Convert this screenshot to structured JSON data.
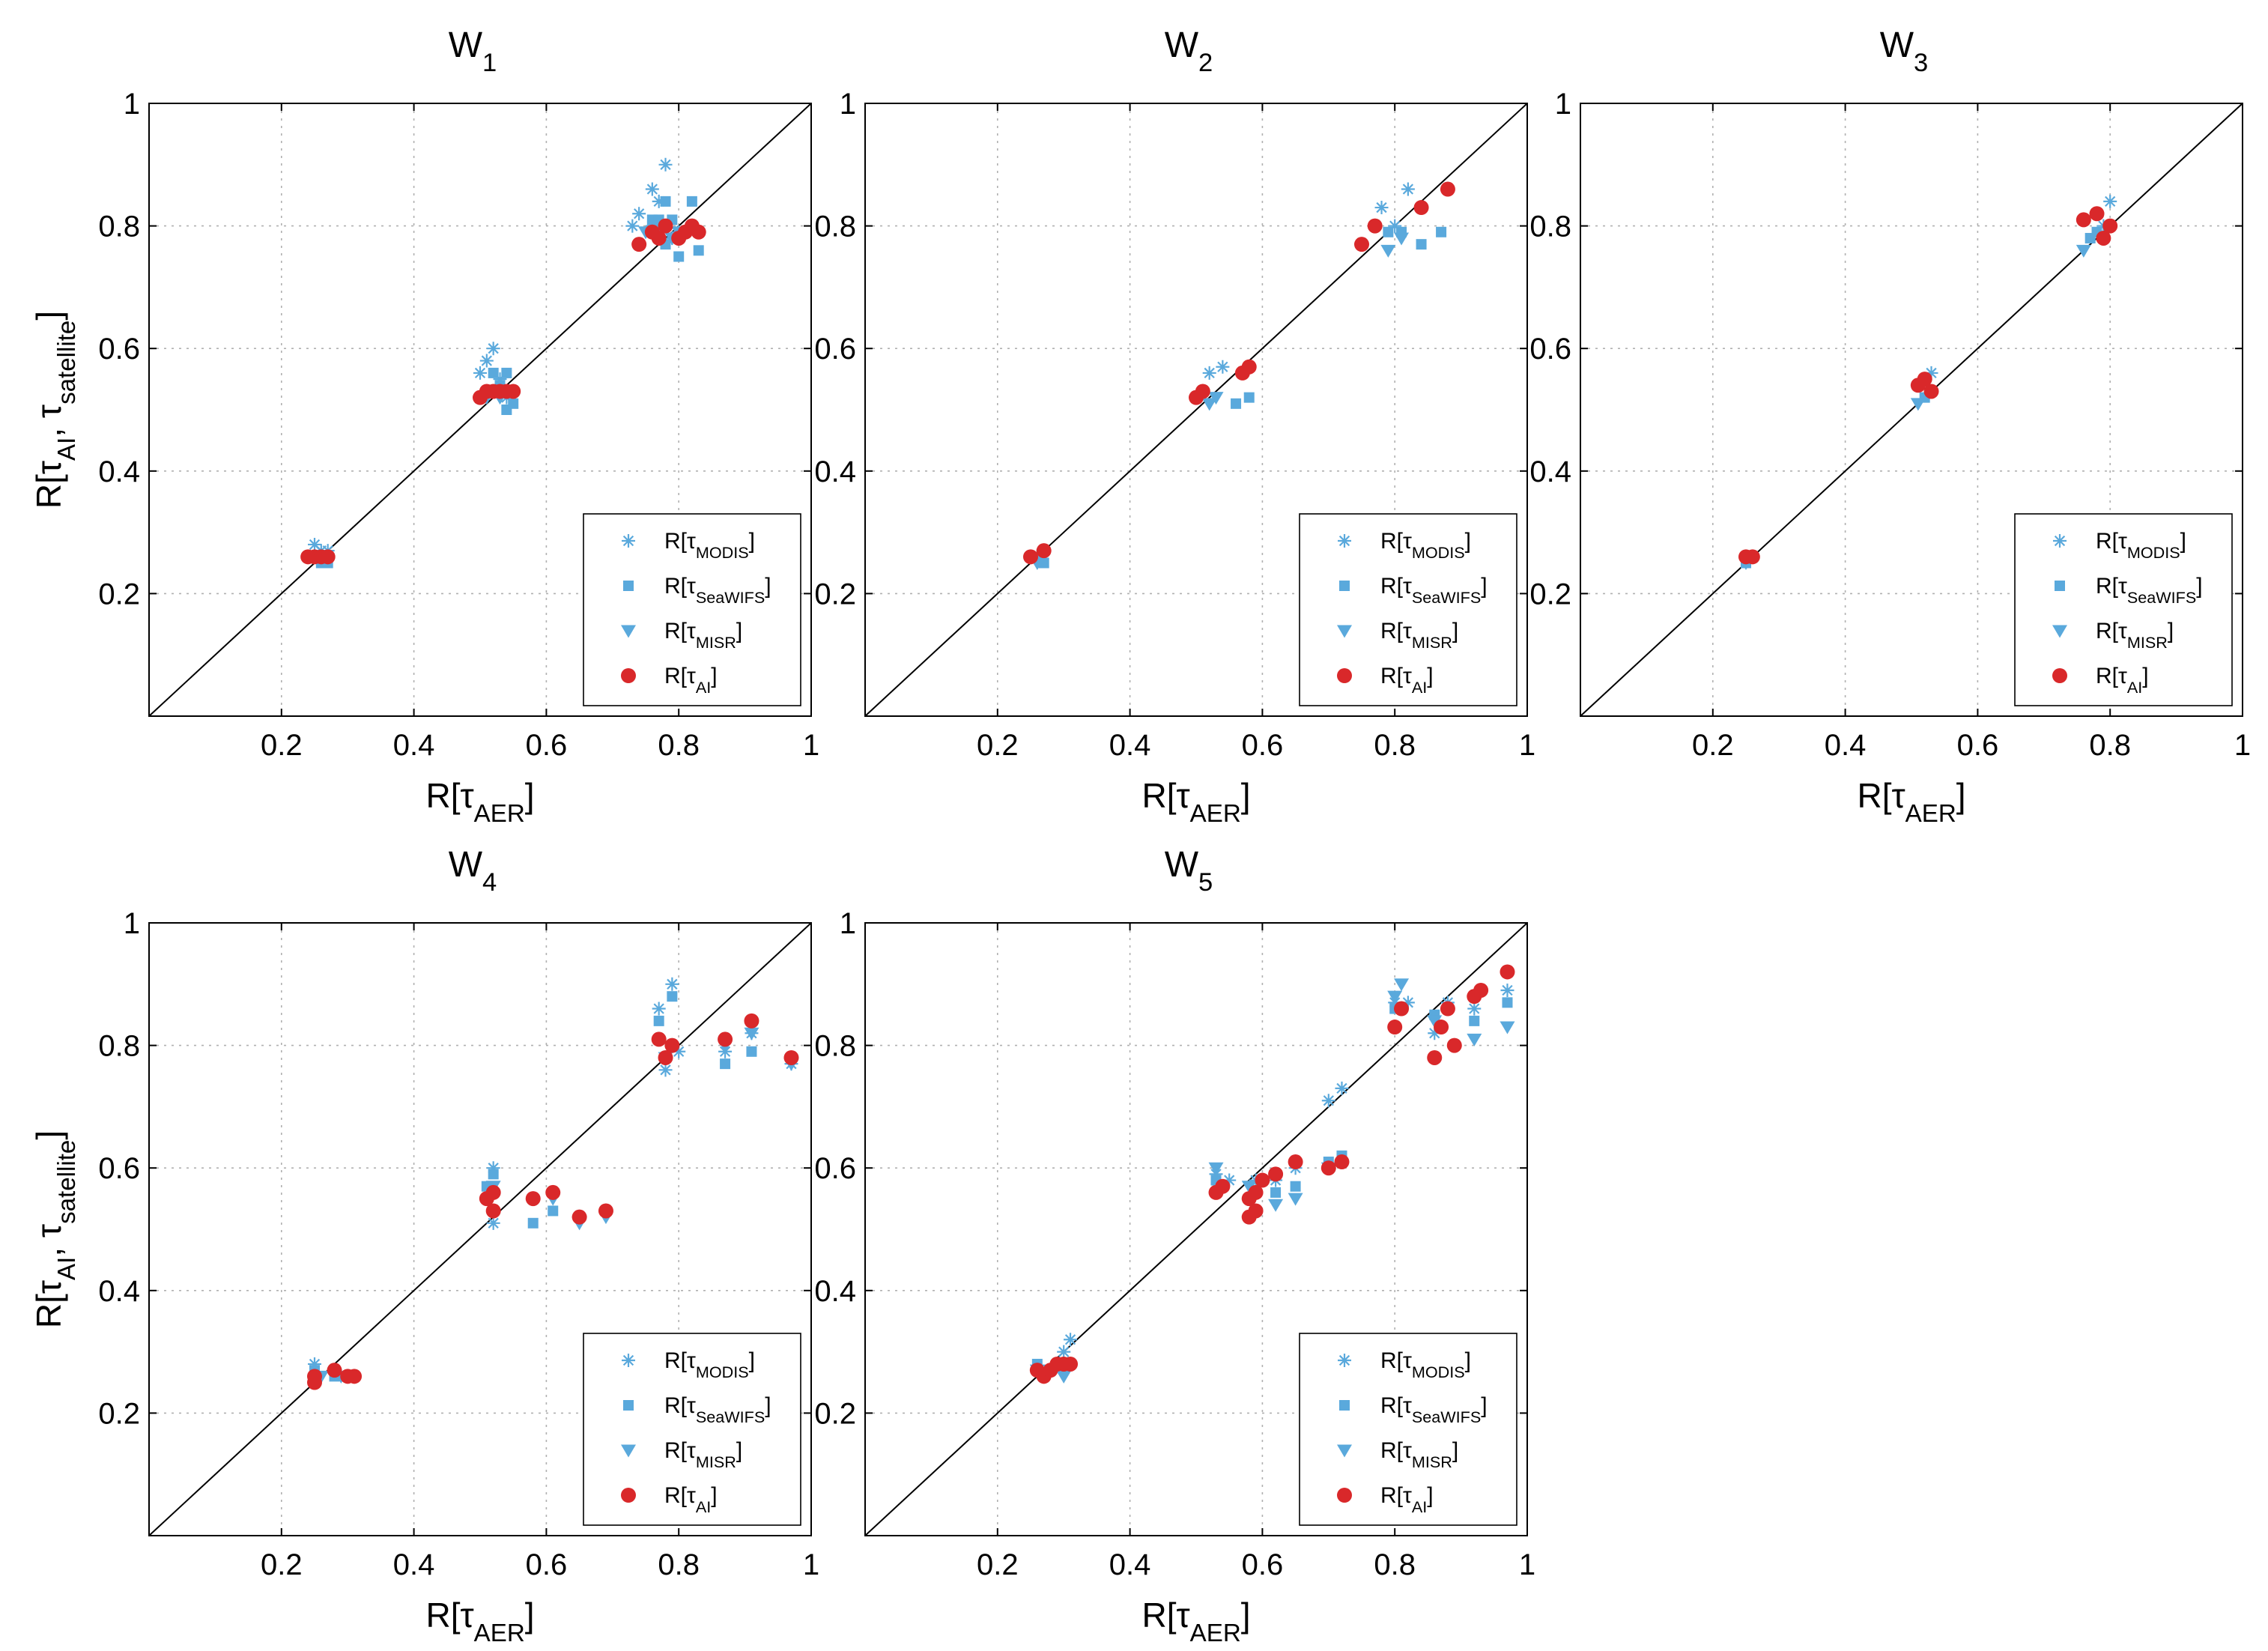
{
  "colors": {
    "satellite": "#5aa9dc",
    "ai": "#d9282a",
    "axis": "#000000",
    "grid": "#b0b0b0"
  },
  "chart_data": {
    "type": "scatter",
    "xlim": [
      0,
      1
    ],
    "ylim": [
      0,
      1
    ],
    "x_ticks": [
      "0.2",
      "0.4",
      "0.6",
      "0.8",
      "1"
    ],
    "y_ticks": [
      "0.2",
      "0.4",
      "0.6",
      "0.8",
      "1"
    ],
    "grid": true,
    "reference_line": "y = x",
    "legend_placement": "bottom-right",
    "xlabel": {
      "prefix": "R[τ",
      "sub": "AER",
      "suffix": "]"
    },
    "ylabel": {
      "prefix": "R[τ",
      "sub1": "AI",
      "mid": ", τ",
      "sub2": "satellite",
      "suffix": "]"
    },
    "legend": [
      {
        "key": "modis",
        "marker": "asterisk",
        "prefix": "R[τ",
        "sub": "MODIS",
        "suffix": "]"
      },
      {
        "key": "seawifs",
        "marker": "square",
        "prefix": "R[τ",
        "sub": "SeaWIFS",
        "suffix": "]"
      },
      {
        "key": "misr",
        "marker": "triangle",
        "prefix": "R[τ",
        "sub": "MISR",
        "suffix": "]"
      },
      {
        "key": "ai",
        "marker": "circle",
        "prefix": "R[τ",
        "sub": "AI",
        "suffix": "]"
      }
    ],
    "panels": [
      {
        "title": {
          "main": "W",
          "sub": "1"
        },
        "show_ylabel": true,
        "series": {
          "modis": [
            [
              0.25,
              0.28
            ],
            [
              0.26,
              0.27
            ],
            [
              0.24,
              0.26
            ],
            [
              0.27,
              0.27
            ],
            [
              0.51,
              0.58
            ],
            [
              0.52,
              0.6
            ],
            [
              0.5,
              0.56
            ],
            [
              0.53,
              0.55
            ],
            [
              0.54,
              0.52
            ],
            [
              0.76,
              0.86
            ],
            [
              0.78,
              0.9
            ],
            [
              0.74,
              0.82
            ],
            [
              0.77,
              0.84
            ],
            [
              0.8,
              0.79
            ],
            [
              0.73,
              0.8
            ],
            [
              0.76,
              0.8
            ],
            [
              0.79,
              0.78
            ]
          ],
          "seawifs": [
            [
              0.25,
              0.26
            ],
            [
              0.26,
              0.25
            ],
            [
              0.27,
              0.25
            ],
            [
              0.51,
              0.53
            ],
            [
              0.52,
              0.56
            ],
            [
              0.54,
              0.5
            ],
            [
              0.55,
              0.51
            ],
            [
              0.53,
              0.54
            ],
            [
              0.54,
              0.56
            ],
            [
              0.76,
              0.81
            ],
            [
              0.77,
              0.81
            ],
            [
              0.78,
              0.84
            ],
            [
              0.79,
              0.81
            ],
            [
              0.8,
              0.75
            ],
            [
              0.82,
              0.84
            ],
            [
              0.83,
              0.76
            ],
            [
              0.78,
              0.77
            ]
          ],
          "misr": [
            [
              0.25,
              0.26
            ],
            [
              0.26,
              0.26
            ],
            [
              0.51,
              0.52
            ],
            [
              0.52,
              0.53
            ],
            [
              0.53,
              0.52
            ],
            [
              0.75,
              0.79
            ],
            [
              0.77,
              0.8
            ],
            [
              0.79,
              0.78
            ],
            [
              0.8,
              0.79
            ]
          ],
          "ai": [
            [
              0.24,
              0.26
            ],
            [
              0.25,
              0.26
            ],
            [
              0.26,
              0.26
            ],
            [
              0.27,
              0.26
            ],
            [
              0.5,
              0.52
            ],
            [
              0.51,
              0.53
            ],
            [
              0.52,
              0.53
            ],
            [
              0.53,
              0.53
            ],
            [
              0.54,
              0.53
            ],
            [
              0.55,
              0.53
            ],
            [
              0.74,
              0.77
            ],
            [
              0.76,
              0.79
            ],
            [
              0.77,
              0.78
            ],
            [
              0.78,
              0.8
            ],
            [
              0.8,
              0.78
            ],
            [
              0.81,
              0.79
            ],
            [
              0.82,
              0.8
            ],
            [
              0.83,
              0.79
            ]
          ]
        }
      },
      {
        "title": {
          "main": "W",
          "sub": "2"
        },
        "show_ylabel": false,
        "series": {
          "modis": [
            [
              0.26,
              0.26
            ],
            [
              0.27,
              0.27
            ],
            [
              0.52,
              0.56
            ],
            [
              0.54,
              0.57
            ],
            [
              0.78,
              0.83
            ],
            [
              0.82,
              0.86
            ],
            [
              0.8,
              0.8
            ]
          ],
          "seawifs": [
            [
              0.27,
              0.25
            ],
            [
              0.56,
              0.51
            ],
            [
              0.58,
              0.52
            ],
            [
              0.79,
              0.79
            ],
            [
              0.81,
              0.79
            ],
            [
              0.84,
              0.77
            ],
            [
              0.87,
              0.79
            ]
          ],
          "misr": [
            [
              0.26,
              0.25
            ],
            [
              0.52,
              0.51
            ],
            [
              0.53,
              0.52
            ],
            [
              0.79,
              0.76
            ],
            [
              0.81,
              0.78
            ]
          ],
          "ai": [
            [
              0.25,
              0.26
            ],
            [
              0.27,
              0.27
            ],
            [
              0.5,
              0.52
            ],
            [
              0.51,
              0.53
            ],
            [
              0.57,
              0.56
            ],
            [
              0.58,
              0.57
            ],
            [
              0.75,
              0.77
            ],
            [
              0.77,
              0.8
            ],
            [
              0.84,
              0.83
            ],
            [
              0.88,
              0.86
            ]
          ]
        }
      },
      {
        "title": {
          "main": "W",
          "sub": "3"
        },
        "show_ylabel": false,
        "series": {
          "modis": [
            [
              0.25,
              0.26
            ],
            [
              0.53,
              0.56
            ],
            [
              0.79,
              0.8
            ],
            [
              0.8,
              0.84
            ]
          ],
          "seawifs": [
            [
              0.25,
              0.25
            ],
            [
              0.52,
              0.52
            ],
            [
              0.77,
              0.78
            ],
            [
              0.78,
              0.79
            ]
          ],
          "misr": [
            [
              0.25,
              0.25
            ],
            [
              0.51,
              0.51
            ],
            [
              0.76,
              0.76
            ]
          ],
          "ai": [
            [
              0.25,
              0.26
            ],
            [
              0.26,
              0.26
            ],
            [
              0.51,
              0.54
            ],
            [
              0.52,
              0.55
            ],
            [
              0.53,
              0.53
            ],
            [
              0.76,
              0.81
            ],
            [
              0.78,
              0.82
            ],
            [
              0.79,
              0.78
            ],
            [
              0.8,
              0.8
            ]
          ]
        }
      },
      {
        "title": {
          "main": "W",
          "sub": "4"
        },
        "show_ylabel": true,
        "series": {
          "modis": [
            [
              0.25,
              0.28
            ],
            [
              0.52,
              0.6
            ],
            [
              0.52,
              0.51
            ],
            [
              0.77,
              0.86
            ],
            [
              0.79,
              0.9
            ],
            [
              0.78,
              0.76
            ],
            [
              0.8,
              0.79
            ],
            [
              0.87,
              0.79
            ],
            [
              0.91,
              0.82
            ],
            [
              0.97,
              0.77
            ]
          ],
          "seawifs": [
            [
              0.25,
              0.27
            ],
            [
              0.28,
              0.26
            ],
            [
              0.51,
              0.57
            ],
            [
              0.52,
              0.59
            ],
            [
              0.58,
              0.51
            ],
            [
              0.61,
              0.53
            ],
            [
              0.77,
              0.84
            ],
            [
              0.79,
              0.88
            ],
            [
              0.87,
              0.77
            ],
            [
              0.91,
              0.79
            ],
            [
              0.97,
              0.78
            ]
          ],
          "misr": [
            [
              0.26,
              0.26
            ],
            [
              0.29,
              0.26
            ],
            [
              0.52,
              0.57
            ],
            [
              0.61,
              0.55
            ],
            [
              0.65,
              0.51
            ],
            [
              0.69,
              0.52
            ],
            [
              0.78,
              0.78
            ],
            [
              0.87,
              0.8
            ],
            [
              0.91,
              0.82
            ],
            [
              0.97,
              0.77
            ]
          ],
          "ai": [
            [
              0.25,
              0.26
            ],
            [
              0.25,
              0.25
            ],
            [
              0.28,
              0.27
            ],
            [
              0.3,
              0.26
            ],
            [
              0.31,
              0.26
            ],
            [
              0.51,
              0.55
            ],
            [
              0.52,
              0.56
            ],
            [
              0.52,
              0.53
            ],
            [
              0.58,
              0.55
            ],
            [
              0.61,
              0.56
            ],
            [
              0.65,
              0.52
            ],
            [
              0.69,
              0.53
            ],
            [
              0.77,
              0.81
            ],
            [
              0.78,
              0.78
            ],
            [
              0.79,
              0.8
            ],
            [
              0.87,
              0.81
            ],
            [
              0.91,
              0.84
            ],
            [
              0.97,
              0.78
            ]
          ]
        }
      },
      {
        "title": {
          "main": "W",
          "sub": "5"
        },
        "show_ylabel": false,
        "series": {
          "modis": [
            [
              0.26,
              0.27
            ],
            [
              0.28,
              0.27
            ],
            [
              0.3,
              0.3
            ],
            [
              0.31,
              0.32
            ],
            [
              0.53,
              0.59
            ],
            [
              0.55,
              0.58
            ],
            [
              0.59,
              0.58
            ],
            [
              0.62,
              0.58
            ],
            [
              0.65,
              0.6
            ],
            [
              0.7,
              0.71
            ],
            [
              0.72,
              0.73
            ],
            [
              0.8,
              0.87
            ],
            [
              0.82,
              0.87
            ],
            [
              0.86,
              0.82
            ],
            [
              0.88,
              0.87
            ],
            [
              0.92,
              0.86
            ],
            [
              0.97,
              0.89
            ]
          ],
          "seawifs": [
            [
              0.26,
              0.28
            ],
            [
              0.28,
              0.27
            ],
            [
              0.3,
              0.28
            ],
            [
              0.53,
              0.58
            ],
            [
              0.58,
              0.55
            ],
            [
              0.62,
              0.56
            ],
            [
              0.65,
              0.57
            ],
            [
              0.7,
              0.61
            ],
            [
              0.72,
              0.62
            ],
            [
              0.8,
              0.86
            ],
            [
              0.86,
              0.85
            ],
            [
              0.92,
              0.84
            ],
            [
              0.97,
              0.87
            ]
          ],
          "misr": [
            [
              0.26,
              0.27
            ],
            [
              0.28,
              0.27
            ],
            [
              0.3,
              0.26
            ],
            [
              0.53,
              0.6
            ],
            [
              0.58,
              0.57
            ],
            [
              0.62,
              0.54
            ],
            [
              0.65,
              0.55
            ],
            [
              0.7,
              0.6
            ],
            [
              0.8,
              0.88
            ],
            [
              0.81,
              0.9
            ],
            [
              0.86,
              0.84
            ],
            [
              0.92,
              0.81
            ],
            [
              0.97,
              0.83
            ]
          ],
          "ai": [
            [
              0.26,
              0.27
            ],
            [
              0.27,
              0.26
            ],
            [
              0.28,
              0.27
            ],
            [
              0.29,
              0.28
            ],
            [
              0.3,
              0.28
            ],
            [
              0.31,
              0.28
            ],
            [
              0.53,
              0.56
            ],
            [
              0.54,
              0.57
            ],
            [
              0.58,
              0.52
            ],
            [
              0.58,
              0.55
            ],
            [
              0.59,
              0.56
            ],
            [
              0.59,
              0.53
            ],
            [
              0.6,
              0.58
            ],
            [
              0.62,
              0.59
            ],
            [
              0.65,
              0.61
            ],
            [
              0.7,
              0.6
            ],
            [
              0.72,
              0.61
            ],
            [
              0.8,
              0.83
            ],
            [
              0.81,
              0.86
            ],
            [
              0.86,
              0.78
            ],
            [
              0.87,
              0.83
            ],
            [
              0.88,
              0.86
            ],
            [
              0.89,
              0.8
            ],
            [
              0.92,
              0.88
            ],
            [
              0.93,
              0.89
            ],
            [
              0.97,
              0.92
            ]
          ]
        }
      }
    ]
  }
}
